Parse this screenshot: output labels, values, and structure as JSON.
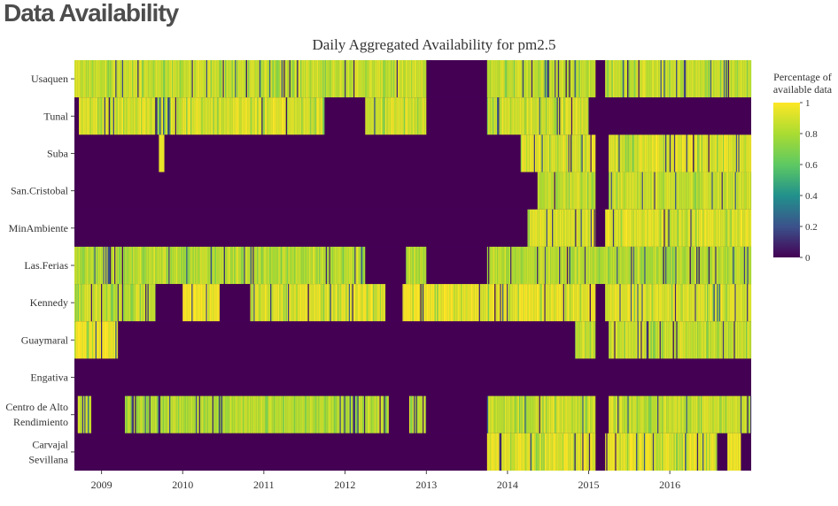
{
  "page": {
    "heading": "Data Availability"
  },
  "chart_data": {
    "type": "heatmap",
    "title": "Daily Aggregated Availability for pm2.5",
    "xlabel": "",
    "ylabel": "",
    "x_range": [
      "2008-09-01",
      "2016-12-31"
    ],
    "x_ticks": [
      "2009",
      "2010",
      "2011",
      "2012",
      "2013",
      "2014",
      "2015",
      "2016"
    ],
    "grid": false,
    "colorscale": {
      "name": "Viridis",
      "min": 0,
      "max": 1,
      "ticks": [
        "0",
        "0.2",
        "0.4",
        "0.6",
        "0.8",
        "1"
      ],
      "colors": [
        "#440154",
        "#3b528b",
        "#21918c",
        "#5ec962",
        "#aadc32",
        "#fde725"
      ],
      "title_lines": [
        "Percentage of",
        "available data"
      ]
    },
    "stations": [
      {
        "name_lines": [
          "Usaquen"
        ],
        "segments": [
          {
            "start": "2008-09-01",
            "end": "2012-12-31",
            "value": 0.85,
            "var": 0.6
          },
          {
            "start": "2013-01-01",
            "end": "2013-09-30",
            "value": 0.0,
            "var": 0
          },
          {
            "start": "2013-10-01",
            "end": "2015-01-31",
            "value": 0.85,
            "var": 0.6
          },
          {
            "start": "2015-02-01",
            "end": "2015-03-15",
            "value": 0.0,
            "var": 0
          },
          {
            "start": "2015-03-16",
            "end": "2016-12-31",
            "value": 0.85,
            "var": 0.6
          }
        ]
      },
      {
        "name_lines": [
          "Tunal"
        ],
        "segments": [
          {
            "start": "2008-09-01",
            "end": "2008-09-20",
            "value": 0.0,
            "var": 0
          },
          {
            "start": "2008-09-21",
            "end": "2011-09-30",
            "value": 0.9,
            "var": 0.5
          },
          {
            "start": "2011-10-01",
            "end": "2012-03-31",
            "value": 0.0,
            "var": 0
          },
          {
            "start": "2012-04-01",
            "end": "2012-12-31",
            "value": 0.88,
            "var": 0.5
          },
          {
            "start": "2013-01-01",
            "end": "2013-09-30",
            "value": 0.0,
            "var": 0
          },
          {
            "start": "2013-10-01",
            "end": "2014-12-31",
            "value": 0.88,
            "var": 0.5
          },
          {
            "start": "2015-01-01",
            "end": "2016-12-31",
            "value": 0.0,
            "var": 0
          }
        ]
      },
      {
        "name_lines": [
          "Suba"
        ],
        "segments": [
          {
            "start": "2008-09-01",
            "end": "2009-09-15",
            "value": 0.0,
            "var": 0
          },
          {
            "start": "2009-09-16",
            "end": "2009-10-10",
            "value": 0.95,
            "var": 0
          },
          {
            "start": "2009-10-11",
            "end": "2014-02-28",
            "value": 0.0,
            "var": 0
          },
          {
            "start": "2014-03-01",
            "end": "2015-01-31",
            "value": 0.9,
            "var": 0.5
          },
          {
            "start": "2015-02-01",
            "end": "2015-03-31",
            "value": 0.0,
            "var": 0
          },
          {
            "start": "2015-04-01",
            "end": "2016-12-31",
            "value": 0.9,
            "var": 0.5
          }
        ]
      },
      {
        "name_lines": [
          "San.Cristobal"
        ],
        "segments": [
          {
            "start": "2008-09-01",
            "end": "2014-05-15",
            "value": 0.0,
            "var": 0
          },
          {
            "start": "2014-05-16",
            "end": "2015-01-31",
            "value": 0.85,
            "var": 0.6
          },
          {
            "start": "2015-02-01",
            "end": "2015-03-31",
            "value": 0.0,
            "var": 0
          },
          {
            "start": "2015-04-01",
            "end": "2016-12-31",
            "value": 0.85,
            "var": 0.6
          }
        ]
      },
      {
        "name_lines": [
          "MinAmbiente"
        ],
        "segments": [
          {
            "start": "2008-09-01",
            "end": "2014-03-31",
            "value": 0.0,
            "var": 0
          },
          {
            "start": "2014-04-01",
            "end": "2015-01-31",
            "value": 0.9,
            "var": 0.5
          },
          {
            "start": "2015-02-01",
            "end": "2015-03-15",
            "value": 0.0,
            "var": 0
          },
          {
            "start": "2015-03-16",
            "end": "2016-12-31",
            "value": 0.9,
            "var": 0.5
          }
        ]
      },
      {
        "name_lines": [
          "Las.Ferias"
        ],
        "segments": [
          {
            "start": "2008-09-01",
            "end": "2012-03-31",
            "value": 0.8,
            "var": 0.6
          },
          {
            "start": "2012-04-01",
            "end": "2012-09-30",
            "value": 0.0,
            "var": 0
          },
          {
            "start": "2012-10-01",
            "end": "2012-12-31",
            "value": 0.8,
            "var": 0.6
          },
          {
            "start": "2013-01-01",
            "end": "2013-09-30",
            "value": 0.0,
            "var": 0
          },
          {
            "start": "2013-10-01",
            "end": "2016-12-31",
            "value": 0.8,
            "var": 0.6
          }
        ]
      },
      {
        "name_lines": [
          "Kennedy"
        ],
        "segments": [
          {
            "start": "2008-09-01",
            "end": "2009-08-31",
            "value": 0.85,
            "var": 0.6
          },
          {
            "start": "2009-09-01",
            "end": "2009-12-31",
            "value": 0.0,
            "var": 0
          },
          {
            "start": "2010-01-01",
            "end": "2010-06-15",
            "value": 0.97,
            "var": 0.1
          },
          {
            "start": "2010-06-16",
            "end": "2010-10-31",
            "value": 0.0,
            "var": 0
          },
          {
            "start": "2010-11-01",
            "end": "2012-06-30",
            "value": 0.92,
            "var": 0.4
          },
          {
            "start": "2012-07-01",
            "end": "2012-09-15",
            "value": 0.0,
            "var": 0
          },
          {
            "start": "2012-09-16",
            "end": "2015-01-31",
            "value": 0.93,
            "var": 0.4
          },
          {
            "start": "2015-02-01",
            "end": "2015-03-15",
            "value": 0.0,
            "var": 0
          },
          {
            "start": "2015-03-16",
            "end": "2016-12-31",
            "value": 0.9,
            "var": 0.45
          }
        ]
      },
      {
        "name_lines": [
          "Guaymaral"
        ],
        "segments": [
          {
            "start": "2008-09-01",
            "end": "2009-03-15",
            "value": 0.95,
            "var": 0.2
          },
          {
            "start": "2009-03-16",
            "end": "2014-10-31",
            "value": 0.0,
            "var": 0
          },
          {
            "start": "2014-11-01",
            "end": "2015-01-31",
            "value": 0.85,
            "var": 0.6
          },
          {
            "start": "2015-02-01",
            "end": "2015-03-31",
            "value": 0.0,
            "var": 0
          },
          {
            "start": "2015-04-01",
            "end": "2016-12-31",
            "value": 0.85,
            "var": 0.6
          }
        ]
      },
      {
        "name_lines": [
          "Engativa"
        ],
        "segments": [
          {
            "start": "2008-09-01",
            "end": "2016-12-31",
            "value": 0.0,
            "var": 0
          }
        ]
      },
      {
        "name_lines": [
          "Centro de Alto",
          "Rendimiento"
        ],
        "segments": [
          {
            "start": "2008-09-01",
            "end": "2008-09-15",
            "value": 0.0,
            "var": 0
          },
          {
            "start": "2008-09-16",
            "end": "2008-11-15",
            "value": 0.85,
            "var": 0.6
          },
          {
            "start": "2008-11-16",
            "end": "2009-04-15",
            "value": 0.0,
            "var": 0
          },
          {
            "start": "2009-04-16",
            "end": "2012-07-15",
            "value": 0.8,
            "var": 0.6
          },
          {
            "start": "2012-07-16",
            "end": "2012-10-15",
            "value": 0.0,
            "var": 0
          },
          {
            "start": "2012-10-16",
            "end": "2012-12-31",
            "value": 0.85,
            "var": 0.6
          },
          {
            "start": "2013-01-01",
            "end": "2013-09-30",
            "value": 0.0,
            "var": 0
          },
          {
            "start": "2013-10-01",
            "end": "2015-01-31",
            "value": 0.85,
            "var": 0.6
          },
          {
            "start": "2015-02-01",
            "end": "2015-03-31",
            "value": 0.0,
            "var": 0
          },
          {
            "start": "2015-04-01",
            "end": "2016-12-31",
            "value": 0.85,
            "var": 0.6
          }
        ]
      },
      {
        "name_lines": [
          "Carvajal",
          "Sevillana"
        ],
        "segments": [
          {
            "start": "2008-09-01",
            "end": "2013-09-30",
            "value": 0.0,
            "var": 0
          },
          {
            "start": "2013-10-01",
            "end": "2015-01-31",
            "value": 0.92,
            "var": 0.4
          },
          {
            "start": "2015-02-01",
            "end": "2015-03-15",
            "value": 0.0,
            "var": 0
          },
          {
            "start": "2015-03-16",
            "end": "2016-07-31",
            "value": 0.92,
            "var": 0.4
          },
          {
            "start": "2016-08-01",
            "end": "2016-09-15",
            "value": 0.0,
            "var": 0
          },
          {
            "start": "2016-09-16",
            "end": "2016-11-15",
            "value": 0.95,
            "var": 0.2
          },
          {
            "start": "2016-11-16",
            "end": "2016-12-31",
            "value": 0.0,
            "var": 0
          }
        ]
      }
    ]
  }
}
